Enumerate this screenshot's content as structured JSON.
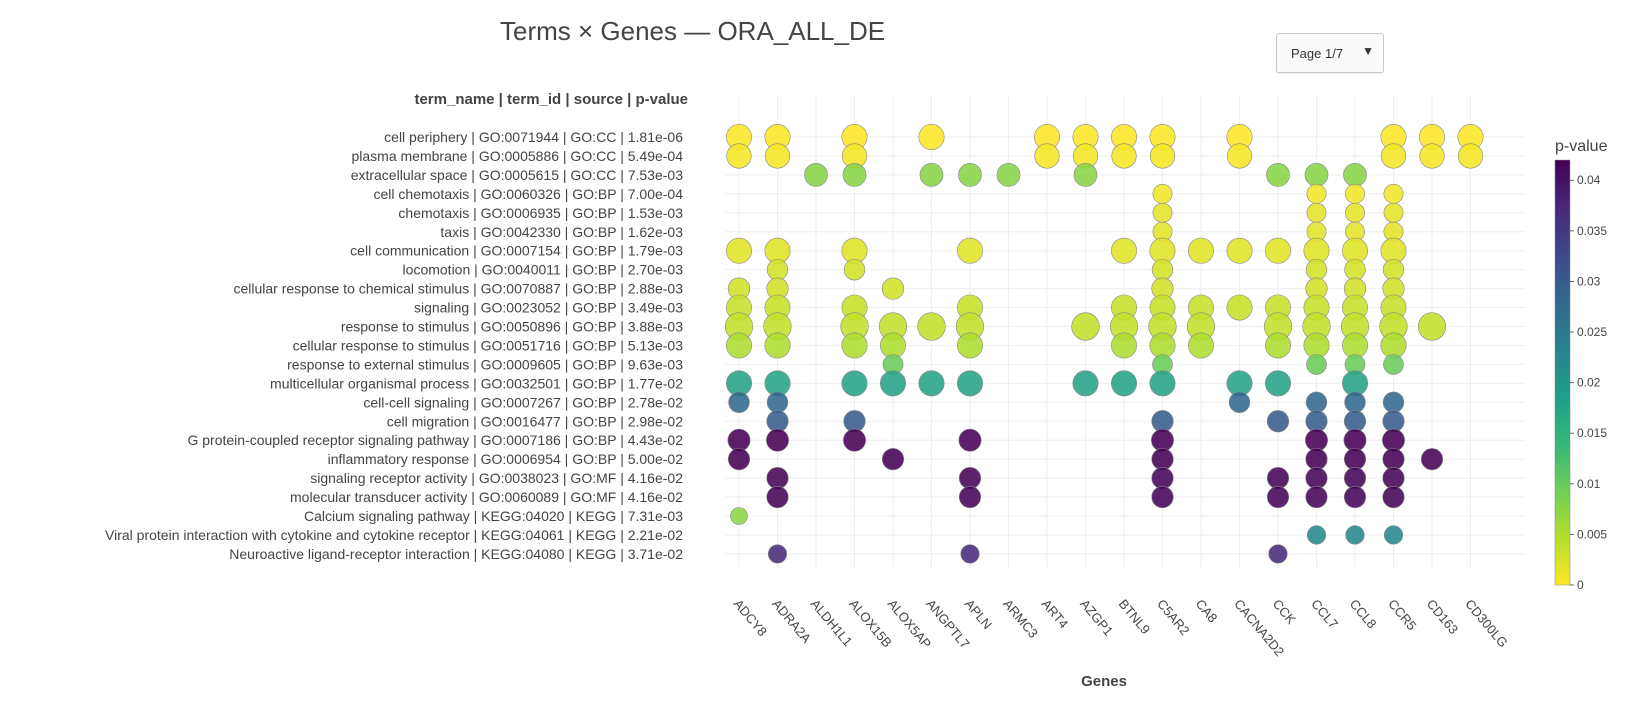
{
  "pager": {
    "label": "Page 1/7",
    "arrow": "▼"
  },
  "chart_data": {
    "type": "scatter",
    "title": "Terms × Genes — ORA_ALL_DE",
    "ylabel": "term_name | term_id | source | p-value",
    "xlabel": "Genes",
    "colorbar_title": "p-value",
    "colorbar_range": [
      0,
      0.042
    ],
    "colorbar_ticks": [
      "0",
      "0.005",
      "0.01",
      "0.015",
      "0.02",
      "0.025",
      "0.03",
      "0.035",
      "0.04"
    ],
    "colorbar_tick_values": [
      0,
      0.005,
      0.01,
      0.015,
      0.02,
      0.025,
      0.03,
      0.035,
      0.04
    ],
    "colorscale": [
      "#fde725",
      "#b5de2b",
      "#6ece58",
      "#35b779",
      "#1f9e89",
      "#26828e",
      "#31688e",
      "#3e4989",
      "#482878",
      "#440154"
    ],
    "genes": [
      "ADCY8",
      "ADRA2A",
      "ALDH1L1",
      "ALOX15B",
      "ALOX5AP",
      "ANGPTL7",
      "APLN",
      "ARMC3",
      "ART4",
      "AZGP1",
      "BTNL9",
      "C5AR2",
      "CA8",
      "CACNA2D2",
      "CCK",
      "CCL7",
      "CCL8",
      "CCR5",
      "CD163",
      "CD300LG"
    ],
    "terms": [
      {
        "label": "cell periphery | GO:0071944 | GO:CC | 1.81e-06",
        "p": 1.81e-06,
        "genes": [
          "ADCY8",
          "ADRA2A",
          "ALOX15B",
          "ANGPTL7",
          "ART4",
          "AZGP1",
          "BTNL9",
          "C5AR2",
          "CACNA2D2",
          "CCR5",
          "CD163",
          "CD300LG"
        ]
      },
      {
        "label": "plasma membrane | GO:0005886 | GO:CC | 5.49e-04",
        "p": 0.000549,
        "genes": [
          "ADCY8",
          "ADRA2A",
          "ALOX15B",
          "ART4",
          "AZGP1",
          "BTNL9",
          "C5AR2",
          "CACNA2D2",
          "CCR5",
          "CD163",
          "CD300LG"
        ]
      },
      {
        "label": "extracellular space | GO:0005615 | GO:CC | 7.53e-03",
        "p": 0.00753,
        "genes": [
          "ALDH1L1",
          "ALOX15B",
          "ANGPTL7",
          "APLN",
          "ARMC3",
          "AZGP1",
          "CCK",
          "CCL7",
          "CCL8"
        ]
      },
      {
        "label": "cell chemotaxis | GO:0060326 | GO:BP | 7.00e-04",
        "p": 0.0007,
        "genes": [
          "C5AR2",
          "CCL7",
          "CCL8",
          "CCR5"
        ]
      },
      {
        "label": "chemotaxis | GO:0006935 | GO:BP | 1.53e-03",
        "p": 0.00153,
        "genes": [
          "C5AR2",
          "CCL7",
          "CCL8",
          "CCR5"
        ]
      },
      {
        "label": "taxis | GO:0042330 | GO:BP | 1.62e-03",
        "p": 0.00162,
        "genes": [
          "C5AR2",
          "CCL7",
          "CCL8",
          "CCR5"
        ]
      },
      {
        "label": "cell communication | GO:0007154 | GO:BP | 1.79e-03",
        "p": 0.00179,
        "genes": [
          "ADCY8",
          "ADRA2A",
          "ALOX15B",
          "APLN",
          "BTNL9",
          "C5AR2",
          "CA8",
          "CACNA2D2",
          "CCK",
          "CCL7",
          "CCL8",
          "CCR5"
        ]
      },
      {
        "label": "locomotion | GO:0040011 | GO:BP | 2.70e-03",
        "p": 0.0027,
        "genes": [
          "ADRA2A",
          "ALOX15B",
          "C5AR2",
          "CCL7",
          "CCL8",
          "CCR5"
        ]
      },
      {
        "label": "cellular response to chemical stimulus | GO:0070887 | GO:BP | 2.88e-03",
        "p": 0.00288,
        "genes": [
          "ADCY8",
          "ADRA2A",
          "ALOX5AP",
          "C5AR2",
          "CCL7",
          "CCL8",
          "CCR5"
        ]
      },
      {
        "label": "signaling | GO:0023052 | GO:BP | 3.49e-03",
        "p": 0.00349,
        "genes": [
          "ADCY8",
          "ADRA2A",
          "ALOX15B",
          "APLN",
          "BTNL9",
          "C5AR2",
          "CA8",
          "CACNA2D2",
          "CCK",
          "CCL7",
          "CCL8",
          "CCR5"
        ]
      },
      {
        "label": "response to stimulus | GO:0050896 | GO:BP | 3.88e-03",
        "p": 0.00388,
        "genes": [
          "ADCY8",
          "ADRA2A",
          "ALOX15B",
          "ALOX5AP",
          "ANGPTL7",
          "APLN",
          "AZGP1",
          "BTNL9",
          "C5AR2",
          "CA8",
          "CCK",
          "CCL7",
          "CCL8",
          "CCR5",
          "CD163"
        ]
      },
      {
        "label": "cellular response to stimulus | GO:0051716 | GO:BP | 5.13e-03",
        "p": 0.00513,
        "genes": [
          "ADCY8",
          "ADRA2A",
          "ALOX15B",
          "ALOX5AP",
          "APLN",
          "BTNL9",
          "C5AR2",
          "CA8",
          "CCK",
          "CCL7",
          "CCL8",
          "CCR5"
        ]
      },
      {
        "label": "response to external stimulus | GO:0009605 | GO:BP | 9.63e-03",
        "p": 0.00963,
        "genes": [
          "ALOX5AP",
          "C5AR2",
          "CCL7",
          "CCL8",
          "CCR5"
        ]
      },
      {
        "label": "multicellular organismal process | GO:0032501 | GO:BP | 1.77e-02",
        "p": 0.0177,
        "genes": [
          "ADCY8",
          "ADRA2A",
          "ALOX15B",
          "ALOX5AP",
          "ANGPTL7",
          "APLN",
          "AZGP1",
          "BTNL9",
          "C5AR2",
          "CACNA2D2",
          "CCK",
          "CCL8"
        ]
      },
      {
        "label": "cell-cell signaling | GO:0007267 | GO:BP | 2.78e-02",
        "p": 0.0278,
        "genes": [
          "ADCY8",
          "ADRA2A",
          "CACNA2D2",
          "CCL7",
          "CCL8",
          "CCR5"
        ]
      },
      {
        "label": "cell migration | GO:0016477 | GO:BP | 2.98e-02",
        "p": 0.0298,
        "genes": [
          "ADRA2A",
          "ALOX15B",
          "C5AR2",
          "CCK",
          "CCL7",
          "CCL8",
          "CCR5"
        ]
      },
      {
        "label": "G protein-coupled receptor signaling pathway | GO:0007186 | GO:BP | 4.43e-02",
        "p": 0.0443,
        "genes": [
          "ADCY8",
          "ADRA2A",
          "ALOX15B",
          "APLN",
          "C5AR2",
          "CCL7",
          "CCL8",
          "CCR5"
        ]
      },
      {
        "label": "inflammatory response | GO:0006954 | GO:BP | 5.00e-02",
        "p": 0.05,
        "genes": [
          "ADCY8",
          "ALOX5AP",
          "C5AR2",
          "CCL7",
          "CCL8",
          "CCR5",
          "CD163"
        ]
      },
      {
        "label": "signaling receptor activity | GO:0038023 | GO:MF | 4.16e-02",
        "p": 0.0416,
        "genes": [
          "ADRA2A",
          "APLN",
          "C5AR2",
          "CCK",
          "CCL7",
          "CCL8",
          "CCR5"
        ]
      },
      {
        "label": "molecular transducer activity | GO:0060089 | GO:MF | 4.16e-02",
        "p": 0.0416,
        "genes": [
          "ADRA2A",
          "APLN",
          "C5AR2",
          "CCK",
          "CCL7",
          "CCL8",
          "CCR5"
        ]
      },
      {
        "label": "Calcium signaling pathway | KEGG:04020 | KEGG | 7.31e-03",
        "p": 0.00731,
        "genes": [
          "ADCY8"
        ]
      },
      {
        "label": "Viral protein interaction with cytokine and cytokine receptor | KEGG:04061 | KEGG | 2.21e-02",
        "p": 0.0221,
        "genes": [
          "CCL7",
          "CCL8",
          "CCR5"
        ]
      },
      {
        "label": "Neuroactive ligand-receptor interaction | KEGG:04080 | KEGG | 3.71e-02",
        "p": 0.0371,
        "genes": [
          "ADRA2A",
          "APLN",
          "CCK"
        ]
      }
    ]
  }
}
